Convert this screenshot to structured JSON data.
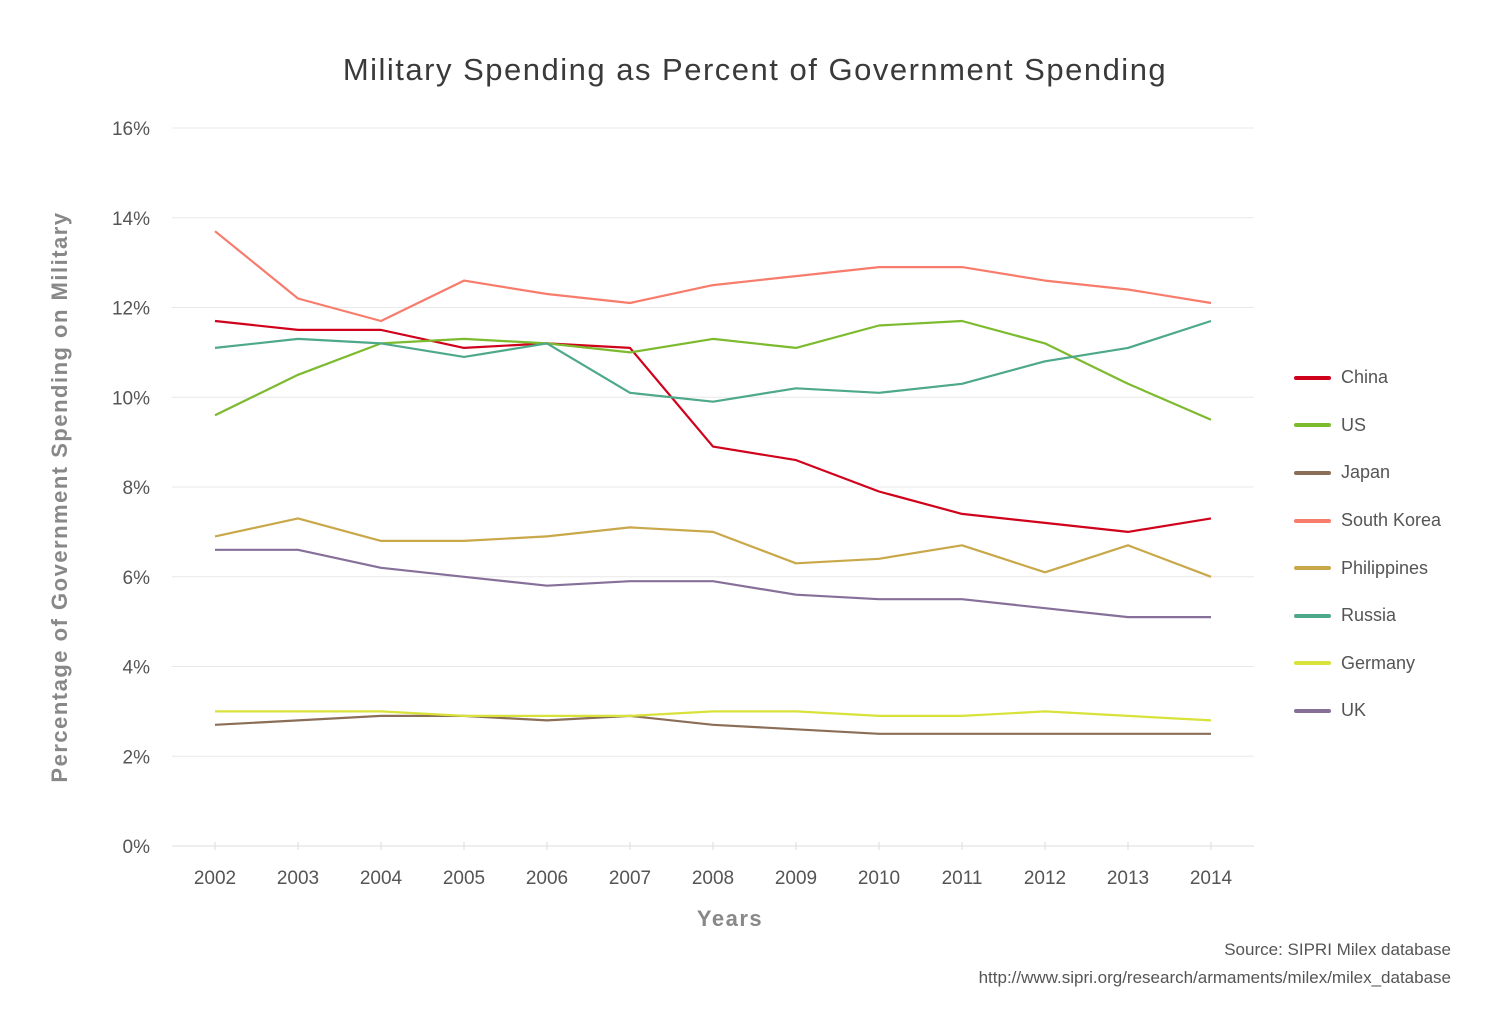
{
  "chart_data": {
    "type": "line",
    "title": "Military Spending as Percent of Government Spending",
    "xlabel": "Years",
    "ylabel": "Percentage of Government Spending on Military",
    "x": [
      2002,
      2003,
      2004,
      2005,
      2006,
      2007,
      2008,
      2009,
      2010,
      2011,
      2012,
      2013,
      2014
    ],
    "x_tick_labels": [
      "2002",
      "2003",
      "2004",
      "2005",
      "2006",
      "2007",
      "2008",
      "2009",
      "2010",
      "2011",
      "2012",
      "2013",
      "2014"
    ],
    "ylim": [
      0,
      16
    ],
    "y_ticks": [
      0,
      2,
      4,
      6,
      8,
      10,
      12,
      14,
      16
    ],
    "y_tick_labels": [
      "0%",
      "2%",
      "4%",
      "6%",
      "8%",
      "10%",
      "12%",
      "14%",
      "16%"
    ],
    "grid": "horizontal",
    "legend_position": "right",
    "series": [
      {
        "name": "China",
        "color": "#d0021b",
        "values": [
          11.7,
          11.5,
          11.5,
          11.1,
          11.2,
          11.1,
          8.9,
          8.6,
          7.9,
          7.4,
          7.2,
          7.0,
          7.3
        ]
      },
      {
        "name": "US",
        "color": "#7cba2e",
        "values": [
          9.6,
          10.5,
          11.2,
          11.3,
          11.2,
          11.0,
          11.3,
          11.1,
          11.6,
          11.7,
          11.2,
          10.3,
          9.5
        ]
      },
      {
        "name": "Japan",
        "color": "#8b6e57",
        "values": [
          2.7,
          2.8,
          2.9,
          2.9,
          2.8,
          2.9,
          2.7,
          2.6,
          2.5,
          2.5,
          2.5,
          2.5,
          2.5
        ]
      },
      {
        "name": "South Korea",
        "color": "#f87c6b",
        "values": [
          13.7,
          12.2,
          11.7,
          12.6,
          12.3,
          12.1,
          12.5,
          12.7,
          12.9,
          12.9,
          12.6,
          12.4,
          12.1
        ]
      },
      {
        "name": "Philippines",
        "color": "#c9a84a",
        "values": [
          6.9,
          7.3,
          6.8,
          6.8,
          6.9,
          7.1,
          7.0,
          6.3,
          6.4,
          6.7,
          6.1,
          6.7,
          6.0
        ]
      },
      {
        "name": "Russia",
        "color": "#4ea88a",
        "values": [
          11.1,
          11.3,
          11.2,
          10.9,
          11.2,
          10.1,
          9.9,
          10.2,
          10.1,
          10.3,
          10.8,
          11.1,
          11.7
        ]
      },
      {
        "name": "Germany",
        "color": "#d8e23a",
        "values": [
          3.0,
          3.0,
          3.0,
          2.9,
          2.9,
          2.9,
          3.0,
          3.0,
          2.9,
          2.9,
          3.0,
          2.9,
          2.8
        ]
      },
      {
        "name": "UK",
        "color": "#86709a",
        "values": [
          6.6,
          6.6,
          6.2,
          6.0,
          5.8,
          5.9,
          5.9,
          5.6,
          5.5,
          5.5,
          5.3,
          5.1,
          5.1
        ]
      }
    ]
  },
  "source": {
    "line1": "Source:  SIPRI Milex database",
    "line2": "http://www.sipri.org/research/armaments/milex/milex_database"
  }
}
